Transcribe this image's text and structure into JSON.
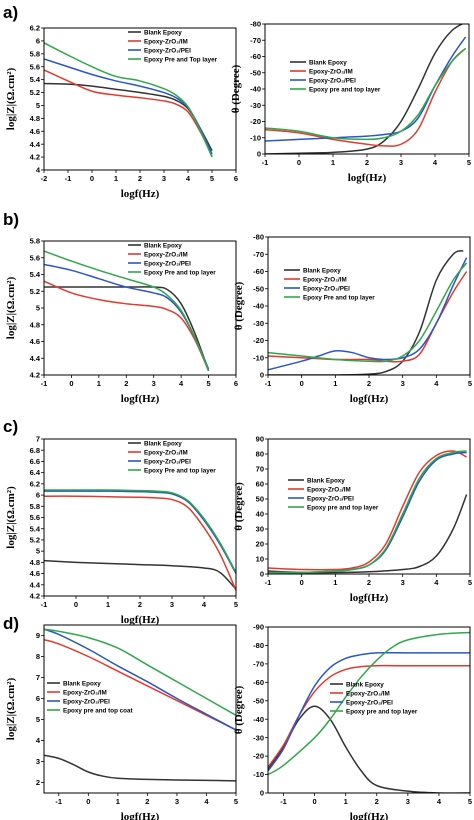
{
  "colors": {
    "blank": "#333333",
    "im": "#e23a2e",
    "pei": "#2a56c9",
    "top": "#2fa84a"
  },
  "chart_data": [
    {
      "panel": "a)",
      "side": "left",
      "type": "line",
      "xlabel": "logf(Hz)",
      "ylabel": "log|Z|(Ω.cm²)",
      "xlim": [
        -2,
        6
      ],
      "ylim": [
        4.0,
        6.2
      ],
      "xticks": [
        -2,
        -1,
        0,
        1,
        2,
        3,
        4,
        5,
        6
      ],
      "yticks": [
        4.0,
        4.2,
        4.4,
        4.6,
        4.8,
        5.0,
        5.2,
        5.4,
        5.6,
        5.8,
        6.0,
        6.2
      ],
      "legend": "top-right",
      "series": [
        {
          "name": "Blank Epoxy",
          "key": "blank",
          "x": [
            -2,
            -1,
            0,
            1,
            2,
            3,
            3.5,
            4,
            4.5,
            5
          ],
          "values": [
            5.34,
            5.33,
            5.3,
            5.25,
            5.2,
            5.14,
            5.08,
            4.95,
            4.65,
            4.3
          ]
        },
        {
          "name": "Epoxy-ZrO₂/IM",
          "key": "im",
          "x": [
            -2,
            -1,
            0,
            1,
            2,
            3,
            3.5,
            4,
            4.5,
            5
          ],
          "values": [
            5.55,
            5.38,
            5.22,
            5.16,
            5.12,
            5.07,
            5.02,
            4.9,
            4.6,
            4.22
          ]
        },
        {
          "name": "Epoxy-ZrO₂/PEI",
          "key": "pei",
          "x": [
            -2,
            -1,
            0,
            1,
            2,
            3,
            3.5,
            4,
            4.5,
            5
          ],
          "values": [
            5.72,
            5.6,
            5.48,
            5.38,
            5.3,
            5.2,
            5.12,
            4.97,
            4.65,
            4.25
          ]
        },
        {
          "name": "Epoxy Pre and Top layer",
          "key": "top",
          "x": [
            -2,
            -1,
            0,
            1,
            2,
            3,
            3.5,
            4,
            4.5,
            5
          ],
          "values": [
            5.97,
            5.78,
            5.6,
            5.45,
            5.38,
            5.26,
            5.16,
            4.98,
            4.62,
            4.2
          ]
        }
      ]
    },
    {
      "panel": "a)",
      "side": "right",
      "type": "line",
      "xlabel": "logf(Hz)",
      "ylabel": "θ (Degree)",
      "xlim": [
        -1,
        5
      ],
      "ylim": [
        0,
        -80
      ],
      "xticks": [
        -1,
        0,
        1,
        2,
        3,
        4,
        5
      ],
      "yticks": [
        0,
        -10,
        -20,
        -30,
        -40,
        -50,
        -60,
        -70,
        -80
      ],
      "legend": "top-left",
      "series": [
        {
          "name": "Blank Epoxy",
          "key": "blank",
          "x": [
            -1,
            0,
            1,
            2,
            2.5,
            3,
            3.5,
            4,
            4.5,
            5
          ],
          "values": [
            0,
            -0.5,
            -1,
            -3,
            -8,
            -20,
            -40,
            -62,
            -76,
            -82
          ]
        },
        {
          "name": "Epoxy-ZrO₂/IM",
          "key": "im",
          "x": [
            -1,
            0,
            1,
            2,
            2.5,
            3,
            3.5,
            4,
            4.5,
            4.9
          ],
          "values": [
            -15,
            -13,
            -9,
            -6,
            -5,
            -6,
            -15,
            -38,
            -57,
            -65
          ]
        },
        {
          "name": "Epoxy-ZrO₂/PEI",
          "key": "pei",
          "x": [
            -1,
            0,
            1,
            2,
            2.5,
            3,
            3.5,
            4,
            4.5,
            4.9
          ],
          "values": [
            -8,
            -9,
            -10,
            -11,
            -12,
            -14,
            -22,
            -42,
            -60,
            -72
          ]
        },
        {
          "name": "Epoxy pre and top layer",
          "key": "top",
          "x": [
            -1,
            0,
            1,
            2,
            2.5,
            3,
            3.5,
            4,
            4.5,
            4.9
          ],
          "values": [
            -16,
            -14,
            -10,
            -9,
            -10,
            -14,
            -24,
            -42,
            -57,
            -65
          ]
        }
      ]
    },
    {
      "panel": "b)",
      "side": "left",
      "type": "line",
      "xlabel": "logf(Hz)",
      "ylabel": "log|Z|(Ω.cm²)",
      "xlim": [
        -1,
        6
      ],
      "ylim": [
        4.2,
        5.8
      ],
      "xticks": [
        -1,
        0,
        1,
        2,
        3,
        4,
        5,
        6
      ],
      "yticks": [
        4.2,
        4.4,
        4.6,
        4.8,
        5.0,
        5.2,
        5.4,
        5.6,
        5.8
      ],
      "legend": "top-right",
      "series": [
        {
          "name": "Blank Epoxy",
          "key": "blank",
          "x": [
            -1,
            0,
            1,
            2,
            3,
            3.5,
            4,
            4.5,
            5
          ],
          "values": [
            5.25,
            5.25,
            5.25,
            5.25,
            5.25,
            5.22,
            5.05,
            4.7,
            4.25
          ]
        },
        {
          "name": "Epoxy-ZrO₂/IM",
          "key": "im",
          "x": [
            -1,
            0,
            1,
            2,
            3,
            3.5,
            4,
            4.5,
            5
          ],
          "values": [
            5.32,
            5.18,
            5.1,
            5.05,
            5.02,
            4.98,
            4.88,
            4.62,
            4.25
          ]
        },
        {
          "name": "Epoxy-ZrO₂/PEI",
          "key": "pei",
          "x": [
            -1,
            0,
            1,
            2,
            3,
            3.5,
            4,
            4.5,
            5
          ],
          "values": [
            5.52,
            5.45,
            5.35,
            5.25,
            5.18,
            5.12,
            4.95,
            4.65,
            4.27
          ]
        },
        {
          "name": "Epoxy Pre and top layer",
          "key": "top",
          "x": [
            -1,
            0,
            1,
            2,
            3,
            3.5,
            4,
            4.5,
            5
          ],
          "values": [
            5.68,
            5.56,
            5.45,
            5.35,
            5.25,
            5.15,
            4.97,
            4.65,
            4.25
          ]
        }
      ]
    },
    {
      "panel": "b)",
      "side": "right",
      "type": "line",
      "xlabel": "logf(Hz)",
      "ylabel": "θ (Degree)",
      "xlim": [
        -1,
        5
      ],
      "ylim": [
        0,
        -80
      ],
      "xticks": [
        -1,
        0,
        1,
        2,
        3,
        4,
        5
      ],
      "yticks": [
        0,
        -10,
        -20,
        -30,
        -40,
        -50,
        -60,
        -70,
        -80
      ],
      "legend": "top-left",
      "series": [
        {
          "name": "Blank Epoxy",
          "key": "blank",
          "x": [
            -1,
            0,
            1,
            2,
            2.5,
            3,
            3.5,
            4,
            4.5,
            4.8
          ],
          "values": [
            0,
            0,
            0,
            -0.5,
            -2,
            -8,
            -25,
            -55,
            -70,
            -72
          ]
        },
        {
          "name": "Epoxy-ZrO₂/IM",
          "key": "im",
          "x": [
            -1,
            0,
            1,
            2,
            2.5,
            3,
            3.5,
            4,
            4.5,
            4.9
          ],
          "values": [
            -11,
            -10,
            -9,
            -9,
            -8,
            -8,
            -12,
            -30,
            -48,
            -60
          ]
        },
        {
          "name": "Epoxy-ZrO₂/PEI",
          "key": "pei",
          "x": [
            -1,
            0,
            0.5,
            1,
            1.5,
            2,
            2.5,
            3,
            3.5,
            4,
            4.5,
            4.9
          ],
          "values": [
            -3,
            -8,
            -11,
            -14,
            -13,
            -10,
            -9,
            -10,
            -15,
            -30,
            -52,
            -68
          ]
        },
        {
          "name": "Epoxy Pre and top layer",
          "key": "top",
          "x": [
            -1,
            0,
            1,
            2,
            2.5,
            3,
            3.5,
            4,
            4.5,
            4.9
          ],
          "values": [
            -13,
            -11,
            -9,
            -8,
            -8,
            -11,
            -20,
            -37,
            -55,
            -65
          ]
        }
      ]
    },
    {
      "panel": "c)",
      "side": "left",
      "type": "line",
      "xlabel": "logf(Hz)",
      "ylabel": "log|Z|(Ω.cm²)",
      "xlim": [
        -1,
        5
      ],
      "ylim": [
        4.2,
        7.0
      ],
      "xticks": [
        -1,
        0,
        1,
        2,
        3,
        4,
        5
      ],
      "yticks": [
        4.2,
        4.4,
        4.6,
        4.8,
        5.0,
        5.2,
        5.4,
        5.6,
        5.8,
        6.0,
        6.2,
        6.4,
        6.6,
        6.8,
        7.0
      ],
      "legend": "top-right",
      "series": [
        {
          "name": "Blank Epoxy",
          "key": "blank",
          "x": [
            -1,
            0,
            1,
            2,
            3,
            4,
            4.5,
            5
          ],
          "values": [
            4.83,
            4.8,
            4.78,
            4.76,
            4.74,
            4.7,
            4.62,
            4.32
          ]
        },
        {
          "name": "Epoxy-ZrO₂/IM",
          "key": "im",
          "x": [
            -1,
            0,
            1,
            2,
            2.5,
            3,
            3.5,
            4,
            4.5,
            5
          ],
          "values": [
            5.98,
            5.98,
            5.97,
            5.96,
            5.95,
            5.92,
            5.78,
            5.42,
            4.95,
            4.3
          ]
        },
        {
          "name": "Epoxy-ZrO₂/PEI",
          "key": "pei",
          "x": [
            -1,
            0,
            1,
            2,
            2.5,
            3,
            3.5,
            4,
            4.5,
            5
          ],
          "values": [
            6.07,
            6.07,
            6.07,
            6.06,
            6.05,
            6.02,
            5.88,
            5.55,
            5.12,
            4.6
          ]
        },
        {
          "name": "Epoxy Pre and top layer",
          "key": "top",
          "x": [
            -1,
            0,
            1,
            2,
            2.5,
            3,
            3.5,
            4,
            4.5,
            5
          ],
          "values": [
            6.09,
            6.09,
            6.09,
            6.08,
            6.07,
            6.04,
            5.9,
            5.58,
            5.15,
            4.62
          ]
        }
      ]
    },
    {
      "panel": "c)",
      "side": "right",
      "type": "line",
      "xlabel": "logf(Hz)",
      "ylabel": "θ (Degree)",
      "xlim": [
        -1,
        5
      ],
      "ylim": [
        0,
        90
      ],
      "xticks": [
        -1,
        0,
        1,
        2,
        3,
        4,
        5
      ],
      "yticks": [
        0,
        10,
        20,
        30,
        40,
        50,
        60,
        70,
        80,
        90
      ],
      "legend": "center",
      "series": [
        {
          "name": "Blank Epoxy",
          "key": "blank",
          "x": [
            -1,
            0,
            1,
            2,
            3,
            3.5,
            4,
            4.5,
            4.9
          ],
          "values": [
            2,
            1,
            1,
            1.5,
            3,
            5,
            12,
            30,
            53
          ]
        },
        {
          "name": "Epoxy-ZrO₂/IM",
          "key": "im",
          "x": [
            -1,
            0,
            1,
            1.5,
            2,
            2.5,
            3,
            3.5,
            4,
            4.5,
            4.9
          ],
          "values": [
            4,
            3,
            3,
            4,
            8,
            20,
            45,
            68,
            79,
            82,
            78
          ]
        },
        {
          "name": "Epoxy-ZrO₂/PEI",
          "key": "pei",
          "x": [
            -1,
            0,
            1,
            1.5,
            2,
            2.5,
            3,
            3.5,
            4,
            4.5,
            4.9
          ],
          "values": [
            1,
            1,
            2,
            3,
            6,
            16,
            38,
            62,
            76,
            80,
            81
          ]
        },
        {
          "name": "Epoxy pre and top layer",
          "key": "top",
          "x": [
            -1,
            0,
            1,
            1.5,
            2,
            2.5,
            3,
            3.5,
            4,
            4.5,
            4.9
          ],
          "values": [
            1,
            1,
            2,
            3,
            6,
            17,
            40,
            64,
            77,
            81,
            82
          ]
        }
      ]
    },
    {
      "panel": "d)",
      "side": "left",
      "type": "line",
      "xlabel": "logf(Hz)",
      "ylabel": "log|Z|(Ω.cm²)",
      "xlim": [
        -1.5,
        5
      ],
      "ylim": [
        1.5,
        9.5
      ],
      "xticks": [
        -1,
        0,
        1,
        2,
        3,
        4,
        5
      ],
      "yticks": [
        2,
        3,
        4,
        5,
        6,
        7,
        8,
        9
      ],
      "legend": "bottom-left",
      "series": [
        {
          "name": "Blank Epoxy",
          "key": "blank",
          "x": [
            -1.5,
            -1,
            -0.5,
            0,
            0.5,
            1,
            2,
            3,
            4,
            5
          ],
          "values": [
            3.3,
            3.15,
            2.85,
            2.5,
            2.3,
            2.2,
            2.15,
            2.12,
            2.1,
            2.08
          ]
        },
        {
          "name": "Epoxy-ZrO₂/IM",
          "key": "im",
          "x": [
            -1.5,
            -1,
            0,
            1,
            2,
            3,
            4,
            5
          ],
          "values": [
            8.8,
            8.6,
            8.0,
            7.3,
            6.6,
            5.9,
            5.2,
            4.5
          ]
        },
        {
          "name": "Epoxy-ZrO₂/PEI",
          "key": "pei",
          "x": [
            -1.5,
            -1,
            0,
            1,
            2,
            3,
            4,
            5
          ],
          "values": [
            9.3,
            9.05,
            8.35,
            7.55,
            6.8,
            6.0,
            5.25,
            4.5
          ]
        },
        {
          "name": "Epoxy pre and top coat",
          "key": "top",
          "x": [
            -1.5,
            -1,
            0,
            1,
            2,
            3,
            4,
            5
          ],
          "values": [
            9.3,
            9.2,
            8.9,
            8.4,
            7.6,
            6.8,
            6.0,
            5.2
          ]
        }
      ]
    },
    {
      "panel": "d)",
      "side": "right",
      "type": "line",
      "xlabel": "logf(Hz)",
      "ylabel": "θ (Degree)",
      "xlim": [
        -1.5,
        5
      ],
      "ylim": [
        0,
        -90
      ],
      "xticks": [
        -1,
        0,
        1,
        2,
        3,
        4,
        5
      ],
      "yticks": [
        0,
        -10,
        -20,
        -30,
        -40,
        -50,
        -60,
        -70,
        -80,
        -90
      ],
      "legend": "right",
      "series": [
        {
          "name": "Blank Epoxy",
          "key": "blank",
          "x": [
            -1.5,
            -1,
            -0.5,
            0,
            0.5,
            1,
            1.5,
            2,
            3,
            4,
            5
          ],
          "values": [
            -13,
            -25,
            -40,
            -47,
            -40,
            -25,
            -12,
            -4,
            -1,
            0,
            0
          ]
        },
        {
          "name": "Epoxy-ZrO₂/IM",
          "key": "im",
          "x": [
            -1.5,
            -1,
            -0.5,
            0,
            0.5,
            1,
            1.5,
            2,
            3,
            4,
            5
          ],
          "values": [
            -14,
            -26,
            -42,
            -55,
            -63,
            -67,
            -68.5,
            -69,
            -69,
            -69,
            -69
          ]
        },
        {
          "name": "Epoxy-ZrO₂/PEI",
          "key": "pei",
          "x": [
            -1.5,
            -1,
            -0.5,
            0,
            0.5,
            1,
            1.5,
            2,
            3,
            4,
            5
          ],
          "values": [
            -12,
            -24,
            -42,
            -58,
            -68,
            -73,
            -75,
            -76,
            -76,
            -76,
            -76
          ]
        },
        {
          "name": "Epoxy pre and top layer",
          "key": "top",
          "x": [
            -1.5,
            -1,
            0,
            0.5,
            1,
            1.5,
            2,
            2.5,
            3,
            4,
            5
          ],
          "values": [
            -10,
            -15,
            -30,
            -40,
            -52,
            -63,
            -72,
            -79,
            -83,
            -86,
            -87
          ]
        }
      ]
    }
  ]
}
